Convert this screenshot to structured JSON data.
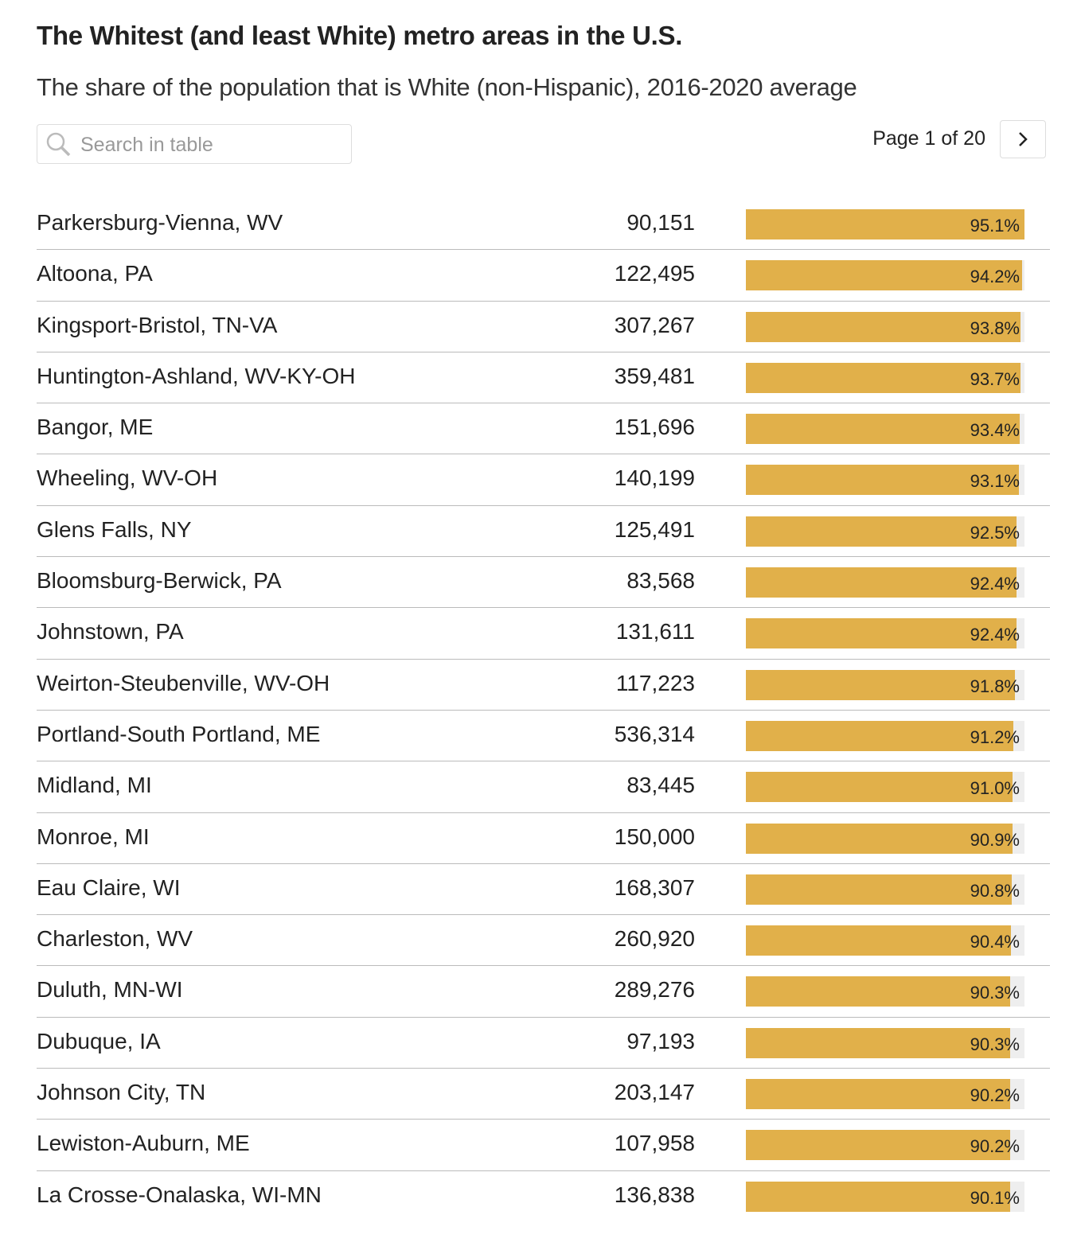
{
  "title": "The Whitest (and least White) metro areas in the U.S.",
  "subtitle": "The share of the population that is White (non-Hispanic), 2016-2020 average",
  "search": {
    "placeholder": "Search in table",
    "icon": "search-icon"
  },
  "pagination": {
    "label": "Page 1 of 20",
    "next_icon": "chevron-right-icon"
  },
  "colors": {
    "bar": "#e1b04a",
    "track": "#eeeeee"
  },
  "chart_data": {
    "type": "table",
    "bar_max": 95.1,
    "rows": [
      {
        "name": "Parkersburg-Vienna, WV",
        "population": "90,151",
        "pct": 95.1,
        "pct_label": "95.1%"
      },
      {
        "name": "Altoona, PA",
        "population": "122,495",
        "pct": 94.2,
        "pct_label": "94.2%"
      },
      {
        "name": "Kingsport-Bristol, TN-VA",
        "population": "307,267",
        "pct": 93.8,
        "pct_label": "93.8%"
      },
      {
        "name": "Huntington-Ashland, WV-KY-OH",
        "population": "359,481",
        "pct": 93.7,
        "pct_label": "93.7%"
      },
      {
        "name": "Bangor, ME",
        "population": "151,696",
        "pct": 93.4,
        "pct_label": "93.4%"
      },
      {
        "name": "Wheeling, WV-OH",
        "population": "140,199",
        "pct": 93.1,
        "pct_label": "93.1%"
      },
      {
        "name": "Glens Falls, NY",
        "population": "125,491",
        "pct": 92.5,
        "pct_label": "92.5%"
      },
      {
        "name": "Bloomsburg-Berwick, PA",
        "population": "83,568",
        "pct": 92.4,
        "pct_label": "92.4%"
      },
      {
        "name": "Johnstown, PA",
        "population": "131,611",
        "pct": 92.4,
        "pct_label": "92.4%"
      },
      {
        "name": "Weirton-Steubenville, WV-OH",
        "population": "117,223",
        "pct": 91.8,
        "pct_label": "91.8%"
      },
      {
        "name": "Portland-South Portland, ME",
        "population": "536,314",
        "pct": 91.2,
        "pct_label": "91.2%"
      },
      {
        "name": "Midland, MI",
        "population": "83,445",
        "pct": 91.0,
        "pct_label": "91.0%"
      },
      {
        "name": "Monroe, MI",
        "population": "150,000",
        "pct": 90.9,
        "pct_label": "90.9%"
      },
      {
        "name": "Eau Claire, WI",
        "population": "168,307",
        "pct": 90.8,
        "pct_label": "90.8%"
      },
      {
        "name": "Charleston, WV",
        "population": "260,920",
        "pct": 90.4,
        "pct_label": "90.4%"
      },
      {
        "name": "Duluth, MN-WI",
        "population": "289,276",
        "pct": 90.3,
        "pct_label": "90.3%"
      },
      {
        "name": "Dubuque, IA",
        "population": "97,193",
        "pct": 90.3,
        "pct_label": "90.3%"
      },
      {
        "name": "Johnson City, TN",
        "population": "203,147",
        "pct": 90.2,
        "pct_label": "90.2%"
      },
      {
        "name": "Lewiston-Auburn, ME",
        "population": "107,958",
        "pct": 90.2,
        "pct_label": "90.2%"
      },
      {
        "name": "La Crosse-Onalaska, WI-MN",
        "population": "136,838",
        "pct": 90.1,
        "pct_label": "90.1%"
      }
    ]
  }
}
